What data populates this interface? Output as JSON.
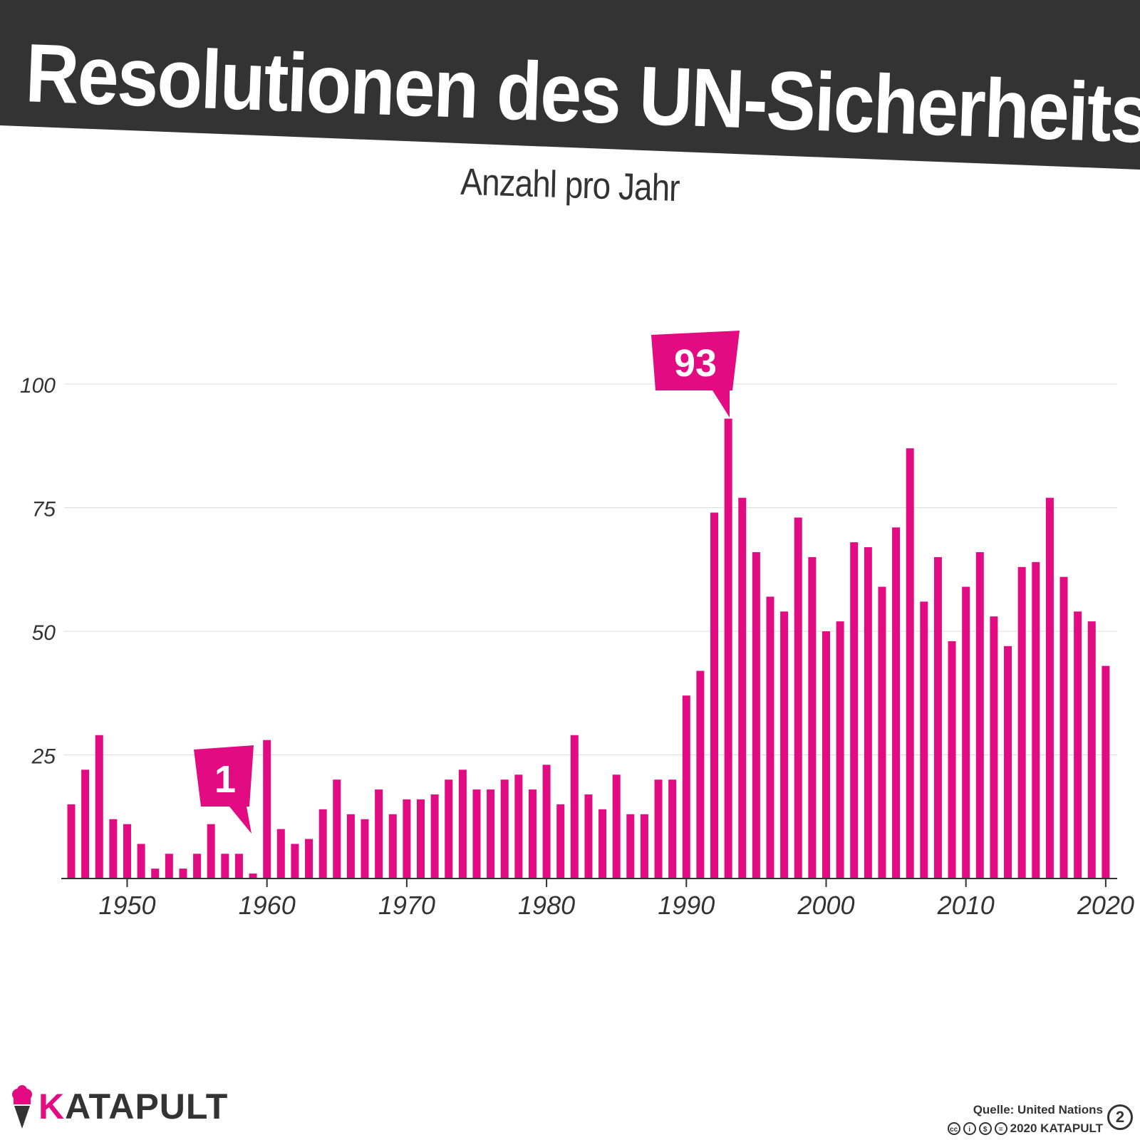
{
  "title": "Resolutionen des UN-Sicherheitsrats",
  "subtitle": "Anzahl pro Jahr",
  "colors": {
    "bar": "#e20b82",
    "banner": "#333333",
    "grid": "#dddddd",
    "text": "#333333"
  },
  "chart_data": {
    "type": "bar",
    "title": "Resolutionen des UN-Sicherheitsrats",
    "subtitle": "Anzahl pro Jahr",
    "xlabel": "",
    "ylabel": "",
    "ylim": [
      0,
      100
    ],
    "yticks": [
      25,
      50,
      75,
      100
    ],
    "xticks": [
      1950,
      1960,
      1970,
      1980,
      1990,
      2000,
      2010,
      2020
    ],
    "grid": true,
    "years": [
      1946,
      1947,
      1948,
      1949,
      1950,
      1951,
      1952,
      1953,
      1954,
      1955,
      1956,
      1957,
      1958,
      1959,
      1960,
      1961,
      1962,
      1963,
      1964,
      1965,
      1966,
      1967,
      1968,
      1969,
      1970,
      1971,
      1972,
      1973,
      1974,
      1975,
      1976,
      1977,
      1978,
      1979,
      1980,
      1981,
      1982,
      1983,
      1984,
      1985,
      1986,
      1987,
      1988,
      1989,
      1990,
      1991,
      1992,
      1993,
      1994,
      1995,
      1996,
      1997,
      1998,
      1999,
      2000,
      2001,
      2002,
      2003,
      2004,
      2005,
      2006,
      2007,
      2008,
      2009,
      2010,
      2011,
      2012,
      2013,
      2014,
      2015,
      2016,
      2017,
      2018,
      2019,
      2020
    ],
    "values": [
      15,
      22,
      29,
      12,
      11,
      7,
      2,
      5,
      2,
      5,
      11,
      5,
      5,
      1,
      28,
      10,
      7,
      8,
      14,
      20,
      13,
      12,
      18,
      13,
      16,
      16,
      17,
      20,
      22,
      18,
      18,
      20,
      21,
      18,
      23,
      15,
      29,
      17,
      14,
      21,
      13,
      13,
      20,
      20,
      37,
      42,
      74,
      93,
      77,
      66,
      57,
      54,
      73,
      65,
      50,
      52,
      68,
      67,
      59,
      71,
      87,
      56,
      65,
      48,
      59,
      66,
      53,
      47,
      63,
      64,
      77,
      61,
      54,
      52,
      43
    ],
    "annotations": [
      {
        "label": "93",
        "year": 1993,
        "value": 93
      },
      {
        "label": "1",
        "year": 1959,
        "value": 1
      }
    ]
  },
  "footer": {
    "brand": "KATAPULT",
    "source": "Quelle: United Nations",
    "copyright": "2020 KATAPULT",
    "page_number": "2"
  }
}
